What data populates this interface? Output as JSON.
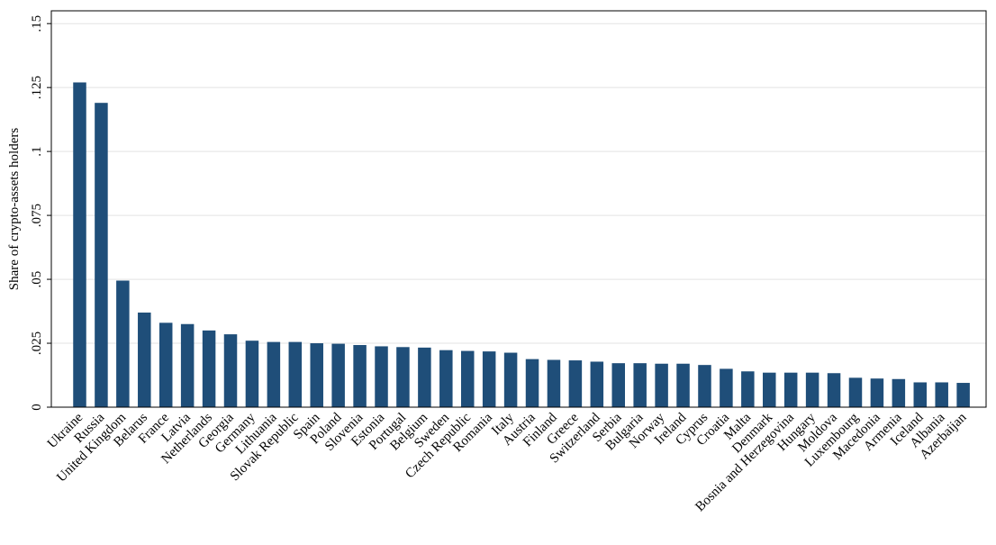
{
  "chart_data": {
    "type": "bar",
    "ylabel": "Share of crypto-assets holders",
    "xlabel": "",
    "title": "",
    "ylim": [
      0,
      0.155
    ],
    "yticks": [
      0,
      0.025,
      0.05,
      0.075,
      0.1,
      0.125,
      0.15
    ],
    "ytick_labels": [
      "0",
      ".025",
      ".05",
      ".075",
      ".1",
      ".125",
      ".15"
    ],
    "grid": "horizontal",
    "bar_color": "#1f4e79",
    "categories": [
      "Ukraine",
      "Russia",
      "United Kingdom",
      "Belarus",
      "France",
      "Latvia",
      "Netherlands",
      "Georgia",
      "Germany",
      "Lithuania",
      "Slovak Republic",
      "Spain",
      "Poland",
      "Slovenia",
      "Estonia",
      "Portugal",
      "Belgium",
      "Sweden",
      "Czech Republic",
      "Romania",
      "Italy",
      "Austria",
      "Finland",
      "Greece",
      "Switzerland",
      "Serbia",
      "Bulgaria",
      "Norway",
      "Ireland",
      "Cyprus",
      "Croatia",
      "Malta",
      "Denmark",
      "Bosnia and Herzegovina",
      "Hungary",
      "Moldova",
      "Luxembourg",
      "Macedonia",
      "Armenia",
      "Iceland",
      "Albania",
      "Azerbaijan"
    ],
    "values": [
      0.127,
      0.119,
      0.0495,
      0.037,
      0.033,
      0.0325,
      0.03,
      0.0285,
      0.026,
      0.0255,
      0.0255,
      0.025,
      0.0248,
      0.0243,
      0.0238,
      0.0235,
      0.0233,
      0.0223,
      0.022,
      0.0218,
      0.0213,
      0.0188,
      0.0185,
      0.0183,
      0.0178,
      0.0172,
      0.0172,
      0.017,
      0.017,
      0.0165,
      0.015,
      0.014,
      0.0135,
      0.0135,
      0.0135,
      0.0133,
      0.0115,
      0.0112,
      0.011,
      0.0097,
      0.0097,
      0.0095
    ]
  }
}
